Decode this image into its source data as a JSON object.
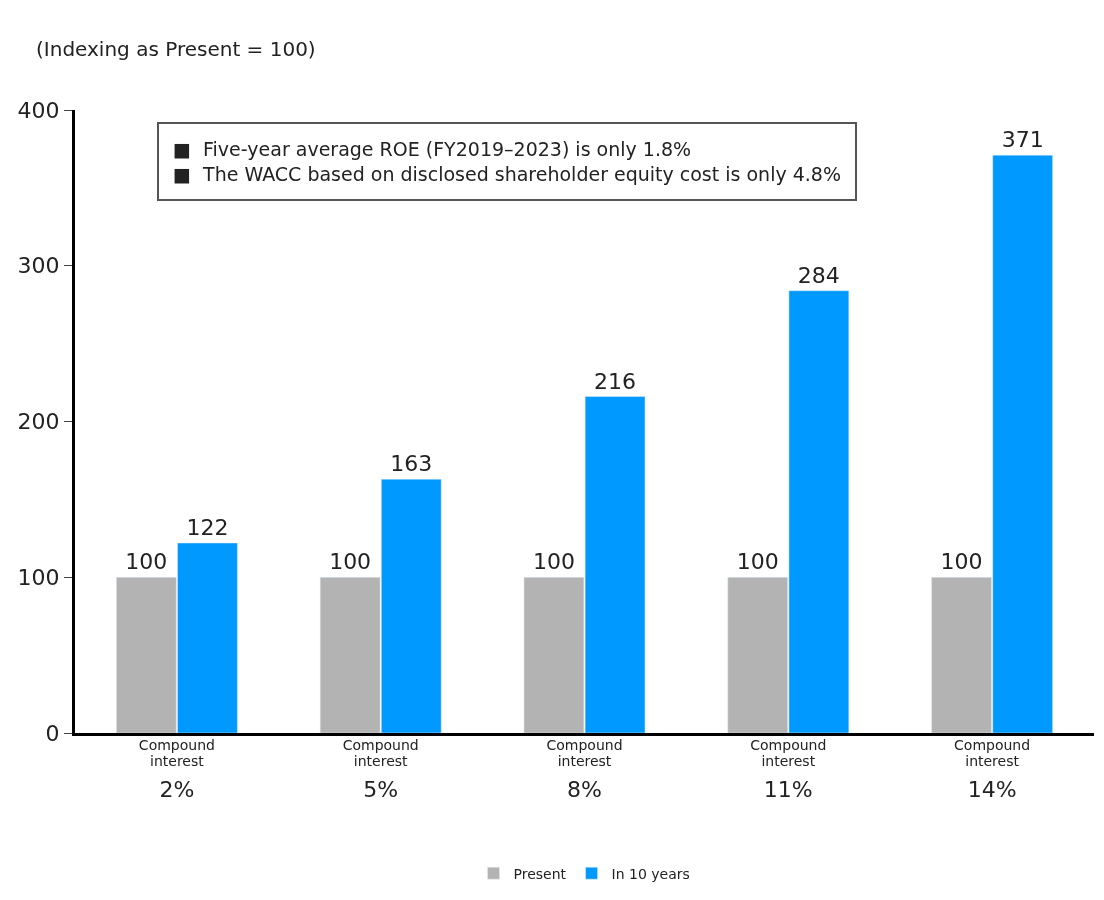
{
  "chart_data": {
    "type": "bar",
    "subtitle": "(Indexing as Present = 100)",
    "categories": [
      "Compound\ninterest\n2%",
      "Compound\ninterest\n5%",
      "Compound\ninterest\n8%",
      "Compound\ninterest\n11%",
      "Compound\ninterest\n14%"
    ],
    "series": [
      {
        "name": "Present",
        "color": "#b3b3b3",
        "values": [
          100,
          100,
          100,
          100,
          100
        ]
      },
      {
        "name": "In 10 years",
        "color": "#0099ff",
        "values": [
          122,
          163,
          216,
          284,
          371
        ]
      }
    ],
    "ylim": [
      0,
      400
    ],
    "yticks": [
      0,
      100,
      200,
      300,
      400
    ],
    "legend": "bottom",
    "data_labels": true,
    "annotations": [
      "■  Five-year average ROE (FY2019–2023) is only 1.8%\n■  The WACC based on disclosed shareholder equity cost is only 4.8%"
    ]
  }
}
